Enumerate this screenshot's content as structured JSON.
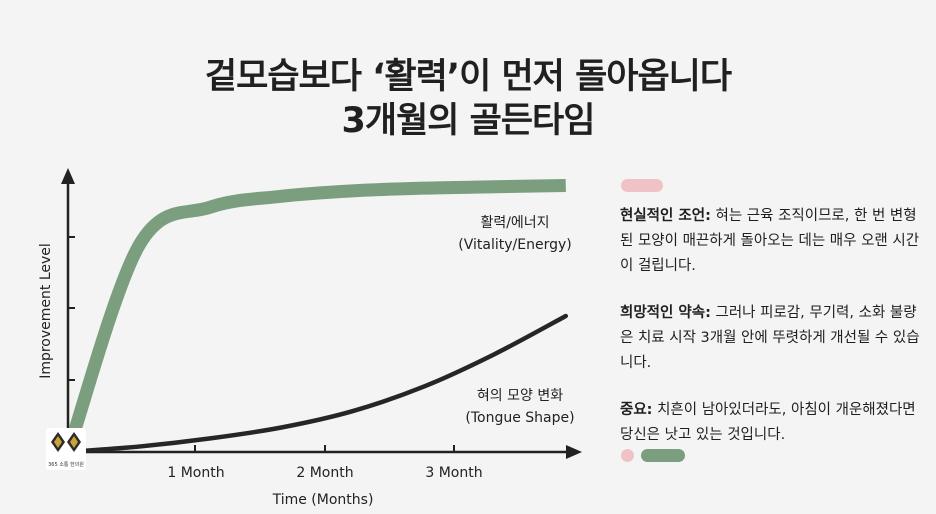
{
  "title_line1": "겉모습보다 ‘활력’이 먼저 돌아옵니다",
  "title_line2": "3개월의 골든타임",
  "chart_data": {
    "type": "line",
    "xlabel": "Time (Months)",
    "ylabel": "Improvement Level",
    "x_ticks": [
      "1 Month",
      "2 Month",
      "3 Month"
    ],
    "x": [
      0,
      0.5,
      1,
      1.5,
      2,
      2.5,
      3,
      3.5
    ],
    "series": [
      {
        "label_line1": "활력/에너지",
        "label_line2": "(Vitality/Energy)",
        "color": "#7a9e7e",
        "values": [
          0,
          0.76,
          0.9,
          0.94,
          0.96,
          0.97,
          0.975,
          0.98
        ]
      },
      {
        "label_line1": "혀의 모양 변화",
        "label_line2": "(Tongue Shape)",
        "color": "#262626",
        "values": [
          0,
          0.02,
          0.05,
          0.09,
          0.15,
          0.24,
          0.36,
          0.5
        ]
      }
    ],
    "grid": false,
    "ylim": [
      0,
      1
    ],
    "xlim": [
      0,
      3.6
    ]
  },
  "notes": [
    {
      "head": "현실적인 조언:",
      "body": " 혀는 근육 조직이므로, 한 번 변형된 모양이 매끈하게 돌아오는 데는 매우 오랜 시간이 걸립니다."
    },
    {
      "head": "희망적인 약속:",
      "body": " 그러나 피로감, 무기력, 소화 불량은 치료 시작 3개월 안에 뚜렷하게 개선될 수 있습니다."
    },
    {
      "head": "중요:",
      "body": " 치흔이 남아있더라도, 아침이 개운해졌다면 당신은 낫고 있는 것입니다."
    }
  ],
  "logo_text": "365 소통 한의원",
  "colors": {
    "green": "#7a9e7e",
    "pink": "#efc3c5",
    "dark": "#262626"
  }
}
